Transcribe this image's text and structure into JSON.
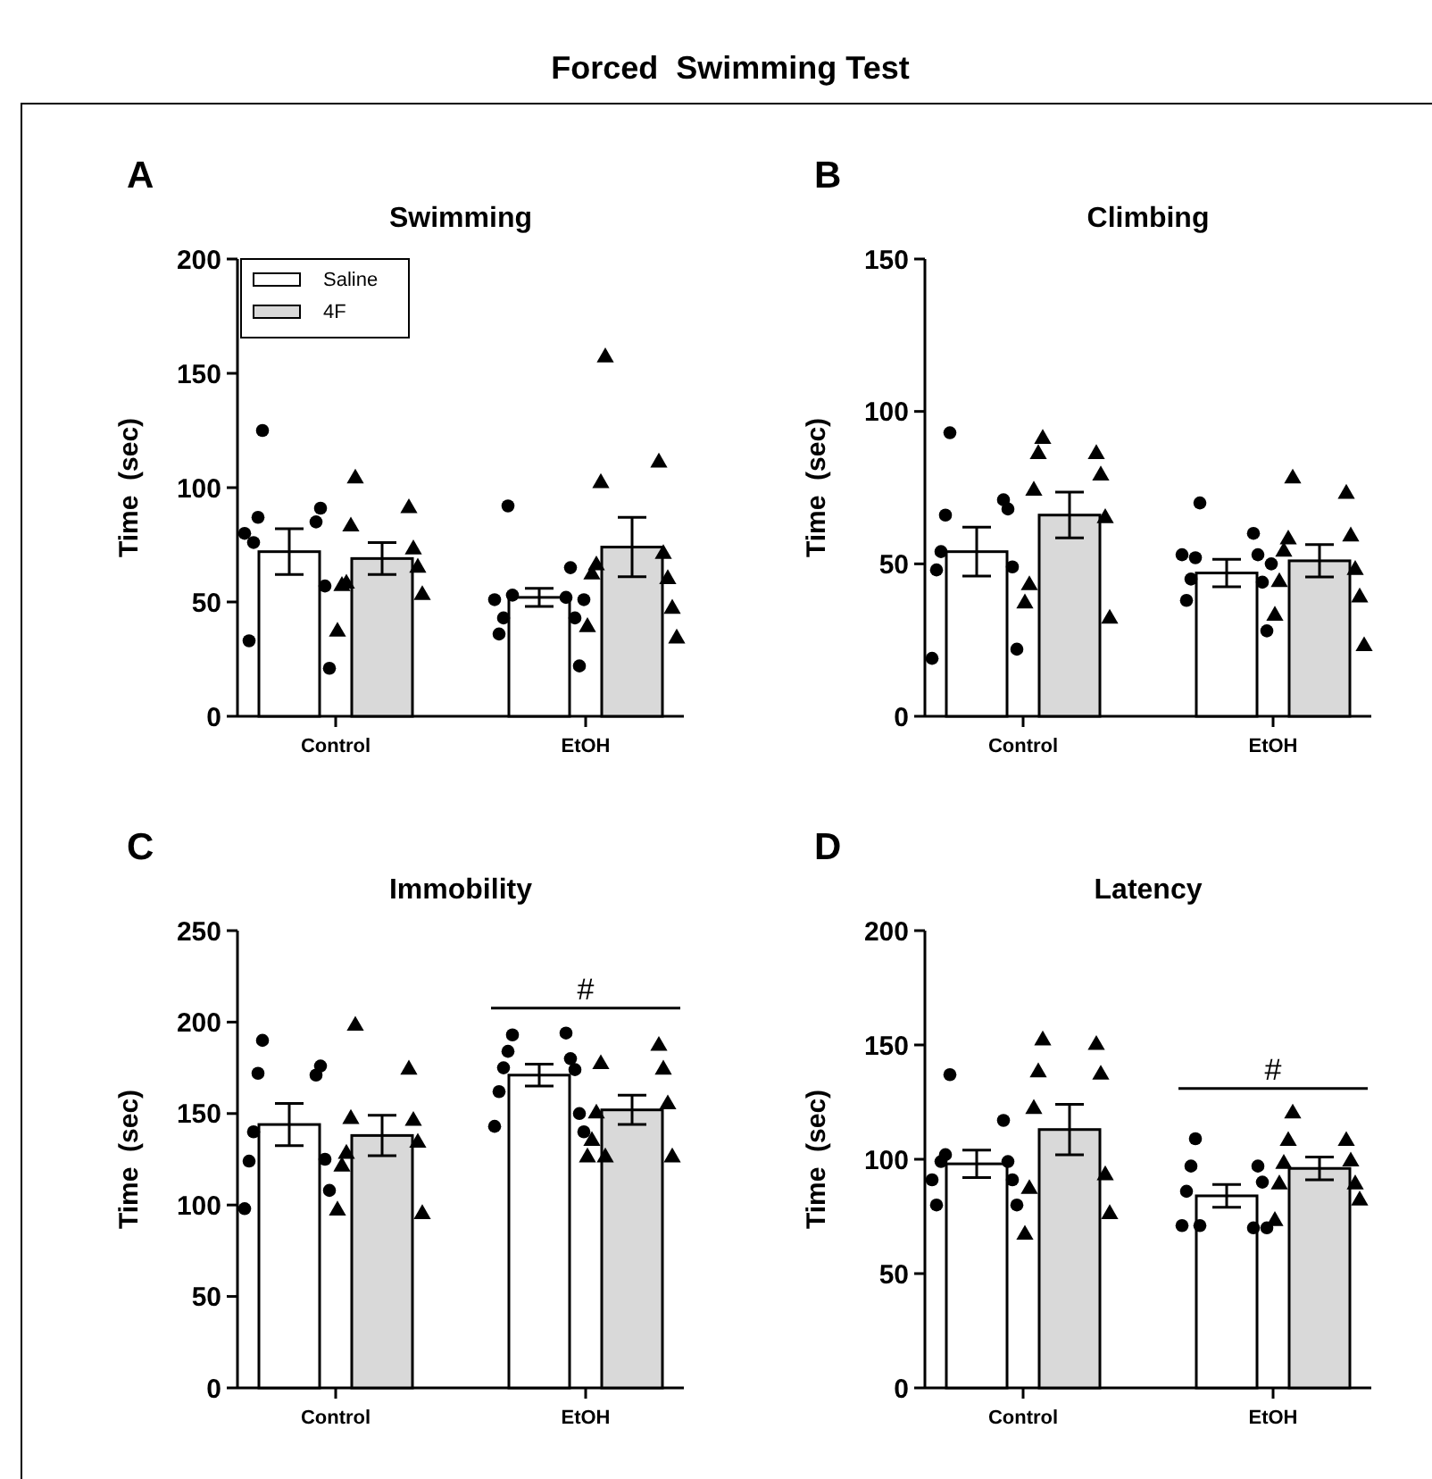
{
  "chart_data": [
    {
      "type": "bar",
      "title": "Forced  Swimming Test",
      "subtitle": "Swimming",
      "ylabel": "Time  (sec)",
      "categories": [
        "Control",
        "EtOH"
      ],
      "ylim": [
        0,
        200
      ],
      "yticks": [
        0,
        50,
        100,
        150,
        200
      ],
      "legend": "top left",
      "annotations": [
        "A"
      ],
      "series": [
        {
          "name": "Saline",
          "color": "#ffffff",
          "values": [
            72,
            52
          ],
          "errors": [
            10,
            4
          ]
        },
        {
          "name": "4F",
          "color": "#d9d9d9",
          "values": [
            69,
            74
          ],
          "errors": [
            7,
            13
          ]
        },
        {
          "type": "scatter",
          "marker": "circle",
          "color": "#000000",
          "x": [
            "Control",
            "Control",
            "Control",
            "Control",
            "Control",
            "Control",
            "Control",
            "Control",
            "Control",
            "EtOH",
            "EtOH",
            "EtOH",
            "EtOH",
            "EtOH",
            "EtOH",
            "EtOH",
            "EtOH",
            "EtOH",
            "EtOH"
          ],
          "values": [
            125,
            85,
            87,
            91,
            76,
            57,
            33,
            21,
            80,
            53,
            52,
            92,
            65,
            43,
            43,
            36,
            22,
            51,
            51
          ]
        },
        {
          "type": "scatter",
          "marker": "triangle",
          "color": "#000000",
          "x": [
            "Control",
            "Control",
            "Control",
            "Control",
            "Control",
            "Control",
            "Control",
            "Control",
            "Control",
            "EtOH",
            "EtOH",
            "EtOH",
            "EtOH",
            "EtOH",
            "EtOH",
            "EtOH",
            "EtOH",
            "EtOH",
            "EtOH"
          ],
          "values": [
            104,
            91,
            83,
            73,
            58,
            65,
            57,
            53,
            37,
            157,
            111,
            102,
            71,
            66,
            60,
            62,
            47,
            39,
            34
          ]
        }
      ]
    },
    {
      "type": "bar",
      "title": "Climbing",
      "ylabel": "Time  (sec)",
      "categories": [
        "Control",
        "EtOH"
      ],
      "ylim": [
        0,
        150
      ],
      "yticks": [
        0,
        50,
        100,
        150
      ],
      "annotations": [
        "B"
      ],
      "series": [
        {
          "name": "Saline",
          "color": "#ffffff",
          "values": [
            54,
            47
          ],
          "errors": [
            8,
            4.5
          ]
        },
        {
          "name": "4F",
          "color": "#d9d9d9",
          "values": [
            66,
            51
          ],
          "errors": [
            7.5,
            5.3
          ]
        },
        {
          "type": "scatter",
          "marker": "circle",
          "color": "#000000",
          "x": [
            "Control",
            "Control",
            "Control",
            "Control",
            "Control",
            "Control",
            "Control",
            "Control",
            "Control",
            "EtOH",
            "EtOH",
            "EtOH",
            "EtOH",
            "EtOH",
            "EtOH",
            "EtOH",
            "EtOH",
            "EtOH",
            "EtOH"
          ],
          "values": [
            93,
            71,
            66,
            68,
            54,
            49,
            48,
            22,
            19,
            70,
            60,
            52,
            53,
            45,
            44,
            38,
            28,
            53,
            50
          ]
        },
        {
          "type": "scatter",
          "marker": "triangle",
          "color": "#000000",
          "x": [
            "Control",
            "Control",
            "Control",
            "Control",
            "Control",
            "Control",
            "Control",
            "Control",
            "Control",
            "EtOH",
            "EtOH",
            "EtOH",
            "EtOH",
            "EtOH",
            "EtOH",
            "EtOH",
            "EtOH",
            "EtOH",
            "EtOH"
          ],
          "values": [
            91,
            86,
            86,
            79,
            74,
            65,
            43,
            32,
            37,
            78,
            73,
            58,
            59,
            54,
            48,
            44,
            39,
            33,
            23
          ]
        }
      ]
    },
    {
      "type": "bar",
      "title": "Immobility",
      "ylabel": "Time  (sec)",
      "categories": [
        "Control",
        "EtOH"
      ],
      "ylim": [
        0,
        250
      ],
      "yticks": [
        0,
        50,
        100,
        150,
        200,
        250
      ],
      "annotations": [
        "C",
        "#"
      ],
      "series": [
        {
          "name": "Saline",
          "color": "#ffffff",
          "values": [
            144,
            171
          ],
          "errors": [
            11.5,
            6
          ]
        },
        {
          "name": "4F",
          "color": "#d9d9d9",
          "values": [
            138,
            152
          ],
          "errors": [
            11,
            8
          ]
        },
        {
          "type": "scatter",
          "marker": "circle",
          "color": "#000000",
          "x": [
            "Control",
            "Control",
            "Control",
            "Control",
            "Control",
            "Control",
            "Control",
            "Control",
            "Control",
            "EtOH",
            "EtOH",
            "EtOH",
            "EtOH",
            "EtOH",
            "EtOH",
            "EtOH",
            "EtOH",
            "EtOH",
            "EtOH"
          ],
          "values": [
            190,
            171,
            172,
            176,
            140,
            125,
            124,
            108,
            98,
            193,
            194,
            184,
            180,
            175,
            174,
            162,
            150,
            143,
            140
          ]
        },
        {
          "type": "scatter",
          "marker": "triangle",
          "color": "#000000",
          "x": [
            "Control",
            "Control",
            "Control",
            "Control",
            "Control",
            "Control",
            "Control",
            "Control",
            "Control",
            "EtOH",
            "EtOH",
            "EtOH",
            "EtOH",
            "EtOH",
            "EtOH",
            "EtOH",
            "EtOH",
            "EtOH"
          ],
          "values": [
            198,
            174,
            147,
            146,
            128,
            134,
            121,
            95,
            97,
            126,
            187,
            177,
            174,
            150,
            155,
            135,
            126,
            126
          ]
        }
      ]
    },
    {
      "type": "bar",
      "title": "Latency",
      "ylabel": "Time  (sec)",
      "categories": [
        "Control",
        "EtOH"
      ],
      "ylim": [
        0,
        200
      ],
      "yticks": [
        0,
        50,
        100,
        150,
        200
      ],
      "annotations": [
        "D",
        "#"
      ],
      "series": [
        {
          "name": "Saline",
          "color": "#ffffff",
          "values": [
            98,
            84
          ],
          "errors": [
            6,
            5
          ]
        },
        {
          "name": "4F",
          "color": "#d9d9d9",
          "values": [
            113,
            96
          ],
          "errors": [
            11,
            5
          ]
        },
        {
          "type": "scatter",
          "marker": "circle",
          "color": "#000000",
          "x": [
            "Control",
            "Control",
            "Control",
            "Control",
            "Control",
            "Control",
            "Control",
            "Control",
            "Control",
            "EtOH",
            "EtOH",
            "EtOH",
            "EtOH",
            "EtOH",
            "EtOH",
            "EtOH",
            "EtOH",
            "EtOH"
          ],
          "values": [
            137,
            117,
            102,
            99,
            99,
            91,
            80,
            80,
            91,
            71,
            70,
            109,
            97,
            97,
            90,
            86,
            70,
            71
          ]
        },
        {
          "type": "scatter",
          "marker": "triangle",
          "color": "#000000",
          "x": [
            "Control",
            "Control",
            "Control",
            "Control",
            "Control",
            "Control",
            "Control",
            "Control",
            "Control",
            "EtOH",
            "EtOH",
            "EtOH",
            "EtOH",
            "EtOH",
            "EtOH",
            "EtOH",
            "EtOH",
            "EtOH"
          ],
          "values": [
            152,
            150,
            138,
            137,
            122,
            93,
            87,
            76,
            67,
            120,
            108,
            108,
            99,
            98,
            89,
            89,
            82,
            73
          ]
        }
      ]
    }
  ]
}
